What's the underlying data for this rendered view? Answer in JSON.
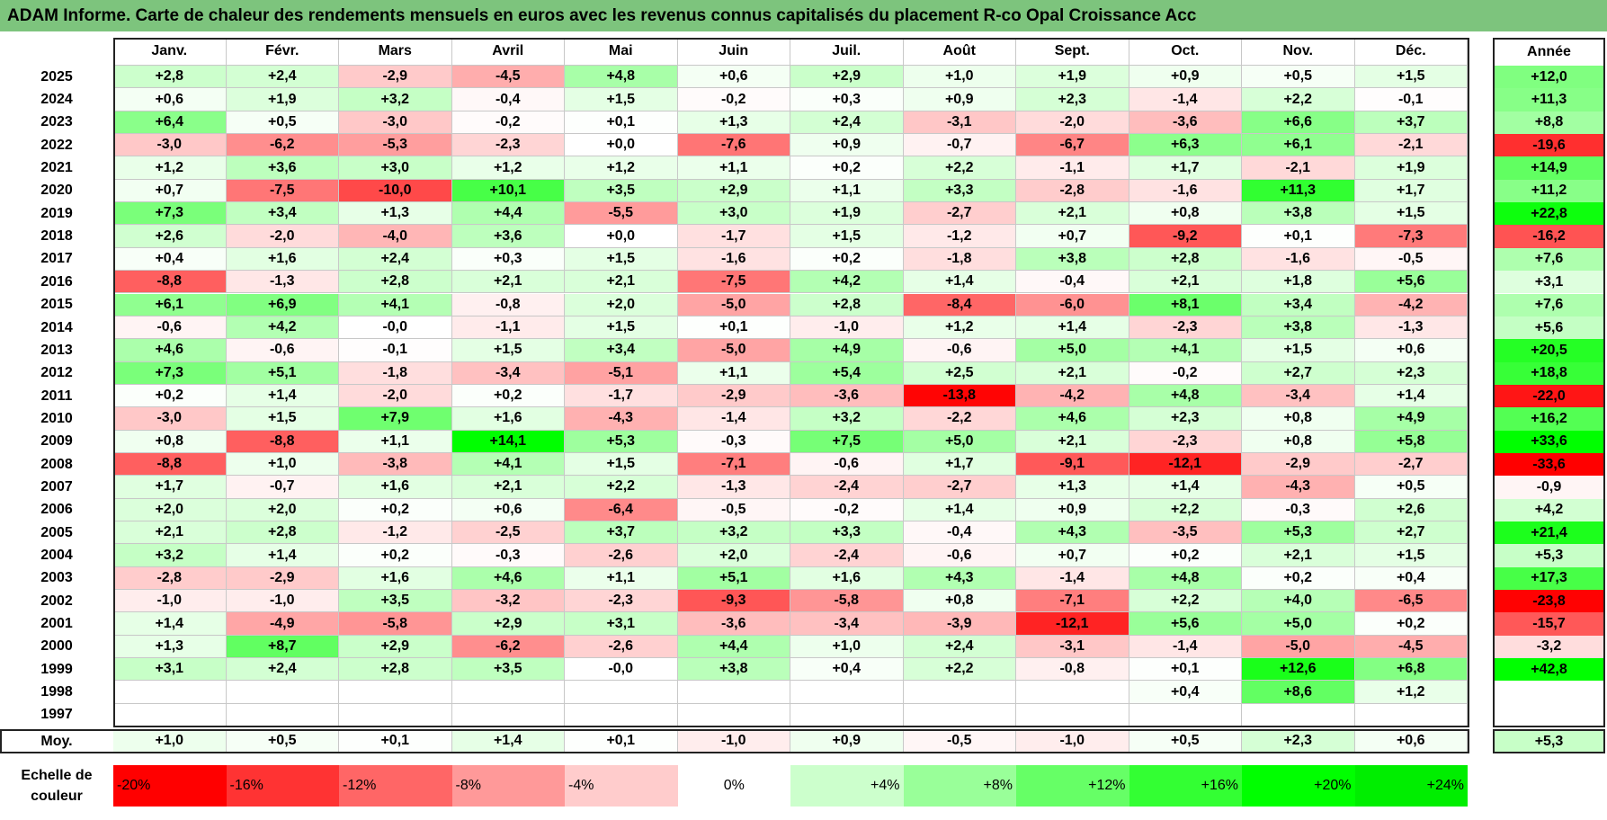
{
  "title": "ADAM Informe. Carte de chaleur des rendements mensuels en euros avec les revenus connus capitalisés du placement R-co Opal Croissance Acc",
  "chart_data": {
    "type": "heatmap",
    "title": "ADAM Informe. Carte de chaleur des rendements mensuels en euros avec les revenus connus capitalisés du placement R-co Opal Croissance Acc",
    "columns": [
      "Janv.",
      "Févr.",
      "Mars",
      "Avril",
      "Mai",
      "Juin",
      "Juil.",
      "Août",
      "Sept.",
      "Oct.",
      "Nov.",
      "Déc."
    ],
    "year_header": "Année",
    "rows": [
      {
        "year": "2025",
        "values": [
          "+2,8",
          "+2,4",
          "-2,9",
          "-4,5",
          "+4,8",
          "+0,6",
          "+2,9",
          "+1,0",
          "+1,9",
          "+0,9",
          "+0,5",
          "+1,5"
        ],
        "annual": "+12,0"
      },
      {
        "year": "2024",
        "values": [
          "+0,6",
          "+1,9",
          "+3,2",
          "-0,4",
          "+1,5",
          "-0,2",
          "+0,3",
          "+0,9",
          "+2,3",
          "-1,4",
          "+2,2",
          "-0,1"
        ],
        "annual": "+11,3"
      },
      {
        "year": "2023",
        "values": [
          "+6,4",
          "+0,5",
          "-3,0",
          "-0,2",
          "+0,1",
          "+1,3",
          "+2,4",
          "-3,1",
          "-2,0",
          "-3,6",
          "+6,6",
          "+3,7"
        ],
        "annual": "+8,8"
      },
      {
        "year": "2022",
        "values": [
          "-3,0",
          "-6,2",
          "-5,3",
          "-2,3",
          "+0,0",
          "-7,6",
          "+0,9",
          "-0,7",
          "-6,7",
          "+6,3",
          "+6,1",
          "-2,1"
        ],
        "annual": "-19,6"
      },
      {
        "year": "2021",
        "values": [
          "+1,2",
          "+3,6",
          "+3,0",
          "+1,2",
          "+1,2",
          "+1,1",
          "+0,2",
          "+2,2",
          "-1,1",
          "+1,7",
          "-2,1",
          "+1,9"
        ],
        "annual": "+14,9"
      },
      {
        "year": "2020",
        "values": [
          "+0,7",
          "-7,5",
          "-10,0",
          "+10,1",
          "+3,5",
          "+2,9",
          "+1,1",
          "+3,3",
          "-2,8",
          "-1,6",
          "+11,3",
          "+1,7"
        ],
        "annual": "+11,2"
      },
      {
        "year": "2019",
        "values": [
          "+7,3",
          "+3,4",
          "+1,3",
          "+4,4",
          "-5,5",
          "+3,0",
          "+1,9",
          "-2,7",
          "+2,1",
          "+0,8",
          "+3,8",
          "+1,5"
        ],
        "annual": "+22,8"
      },
      {
        "year": "2018",
        "values": [
          "+2,6",
          "-2,0",
          "-4,0",
          "+3,6",
          "+0,0",
          "-1,7",
          "+1,5",
          "-1,2",
          "+0,7",
          "-9,2",
          "+0,1",
          "-7,3"
        ],
        "annual": "-16,2"
      },
      {
        "year": "2017",
        "values": [
          "+0,4",
          "+1,6",
          "+2,4",
          "+0,3",
          "+1,5",
          "-1,6",
          "+0,2",
          "-1,8",
          "+3,8",
          "+2,8",
          "-1,6",
          "-0,5"
        ],
        "annual": "+7,6"
      },
      {
        "year": "2016",
        "values": [
          "-8,8",
          "-1,3",
          "+2,8",
          "+2,1",
          "+2,1",
          "-7,5",
          "+4,2",
          "+1,4",
          "-0,4",
          "+2,1",
          "+1,8",
          "+5,6"
        ],
        "annual": "+3,1"
      },
      {
        "year": "2015",
        "values": [
          "+6,1",
          "+6,9",
          "+4,1",
          "-0,8",
          "+2,0",
          "-5,0",
          "+2,8",
          "-8,4",
          "-6,0",
          "+8,1",
          "+3,4",
          "-4,2"
        ],
        "annual": "+7,6"
      },
      {
        "year": "2014",
        "values": [
          "-0,6",
          "+4,2",
          "-0,0",
          "-1,1",
          "+1,5",
          "+0,1",
          "-1,0",
          "+1,2",
          "+1,4",
          "-2,3",
          "+3,8",
          "-1,3"
        ],
        "annual": "+5,6"
      },
      {
        "year": "2013",
        "values": [
          "+4,6",
          "-0,6",
          "-0,1",
          "+1,5",
          "+3,4",
          "-5,0",
          "+4,9",
          "-0,6",
          "+5,0",
          "+4,1",
          "+1,5",
          "+0,6"
        ],
        "annual": "+20,5"
      },
      {
        "year": "2012",
        "values": [
          "+7,3",
          "+5,1",
          "-1,8",
          "-3,4",
          "-5,1",
          "+1,1",
          "+5,4",
          "+2,5",
          "+2,1",
          "-0,2",
          "+2,7",
          "+2,3"
        ],
        "annual": "+18,8"
      },
      {
        "year": "2011",
        "values": [
          "+0,2",
          "+1,4",
          "-2,0",
          "+0,2",
          "-1,7",
          "-2,9",
          "-3,6",
          "-13,8",
          "-4,2",
          "+4,8",
          "-3,4",
          "+1,4"
        ],
        "annual": "-22,0"
      },
      {
        "year": "2010",
        "values": [
          "-3,0",
          "+1,5",
          "+7,9",
          "+1,6",
          "-4,3",
          "-1,4",
          "+3,2",
          "-2,2",
          "+4,6",
          "+2,3",
          "+0,8",
          "+4,9"
        ],
        "annual": "+16,2"
      },
      {
        "year": "2009",
        "values": [
          "+0,8",
          "-8,8",
          "+1,1",
          "+14,1",
          "+5,3",
          "-0,3",
          "+7,5",
          "+5,0",
          "+2,1",
          "-2,3",
          "+0,8",
          "+5,8"
        ],
        "annual": "+33,6"
      },
      {
        "year": "2008",
        "values": [
          "-8,8",
          "+1,0",
          "-3,8",
          "+4,1",
          "+1,5",
          "-7,1",
          "-0,6",
          "+1,7",
          "-9,1",
          "-12,1",
          "-2,9",
          "-2,7"
        ],
        "annual": "-33,6"
      },
      {
        "year": "2007",
        "values": [
          "+1,7",
          "-0,7",
          "+1,6",
          "+2,1",
          "+2,2",
          "-1,3",
          "-2,4",
          "-2,7",
          "+1,3",
          "+1,4",
          "-4,3",
          "+0,5"
        ],
        "annual": "-0,9"
      },
      {
        "year": "2006",
        "values": [
          "+2,0",
          "+2,0",
          "+0,2",
          "+0,6",
          "-6,4",
          "-0,5",
          "-0,2",
          "+1,4",
          "+0,9",
          "+2,2",
          "-0,3",
          "+2,6"
        ],
        "annual": "+4,2"
      },
      {
        "year": "2005",
        "values": [
          "+2,1",
          "+2,8",
          "-1,2",
          "-2,5",
          "+3,7",
          "+3,2",
          "+3,3",
          "-0,4",
          "+4,3",
          "-3,5",
          "+5,3",
          "+2,7"
        ],
        "annual": "+21,4"
      },
      {
        "year": "2004",
        "values": [
          "+3,2",
          "+1,4",
          "+0,2",
          "-0,3",
          "-2,6",
          "+2,0",
          "-2,4",
          "-0,6",
          "+0,7",
          "+0,2",
          "+2,1",
          "+1,5"
        ],
        "annual": "+5,3"
      },
      {
        "year": "2003",
        "values": [
          "-2,8",
          "-2,9",
          "+1,6",
          "+4,6",
          "+1,1",
          "+5,1",
          "+1,6",
          "+4,3",
          "-1,4",
          "+4,8",
          "+0,2",
          "+0,4"
        ],
        "annual": "+17,3"
      },
      {
        "year": "2002",
        "values": [
          "-1,0",
          "-1,0",
          "+3,5",
          "-3,2",
          "-2,3",
          "-9,3",
          "-5,8",
          "+0,8",
          "-7,1",
          "+2,2",
          "+4,0",
          "-6,5"
        ],
        "annual": "-23,8"
      },
      {
        "year": "2001",
        "values": [
          "+1,4",
          "-4,9",
          "-5,8",
          "+2,9",
          "+3,1",
          "-3,6",
          "-3,4",
          "-3,9",
          "-12,1",
          "+5,6",
          "+5,0",
          "+0,2"
        ],
        "annual": "-15,7"
      },
      {
        "year": "2000",
        "values": [
          "+1,3",
          "+8,7",
          "+2,9",
          "-6,2",
          "-2,6",
          "+4,4",
          "+1,0",
          "+2,4",
          "-3,1",
          "-1,4",
          "-5,0",
          "-4,5"
        ],
        "annual": "-3,2"
      },
      {
        "year": "1999",
        "values": [
          "+3,1",
          "+2,4",
          "+2,8",
          "+3,5",
          "-0,0",
          "+3,8",
          "+0,4",
          "+2,2",
          "-0,8",
          "+0,1",
          "+12,6",
          "+6,8"
        ],
        "annual": "+42,8"
      },
      {
        "year": "1998",
        "values": [
          "",
          "",
          "",
          "",
          "",
          "",
          "",
          "",
          "",
          "+0,4",
          "+8,6",
          "+1,2"
        ],
        "annual": ""
      },
      {
        "year": "1997",
        "values": [
          "",
          "",
          "",
          "",
          "",
          "",
          "",
          "",
          "",
          "",
          "",
          ""
        ],
        "annual": ""
      }
    ],
    "average": {
      "label": "Moy.",
      "values": [
        "+1,0",
        "+0,5",
        "+0,1",
        "+1,4",
        "+0,1",
        "-1,0",
        "+0,9",
        "-0,5",
        "-1,0",
        "+0,5",
        "+2,3",
        "+0,6"
      ],
      "annual": "+5,3"
    },
    "legend": {
      "label_line1": "Echelle de",
      "label_line2": "couleur",
      "items": [
        {
          "label": "-20%",
          "color": "#ff0000"
        },
        {
          "label": "-16%",
          "color": "#ff3333"
        },
        {
          "label": "-12%",
          "color": "#ff6666"
        },
        {
          "label": "-8%",
          "color": "#ff9999"
        },
        {
          "label": "-4%",
          "color": "#ffcccc"
        },
        {
          "label": "0%",
          "color": "#ffffff"
        },
        {
          "label": "+4%",
          "color": "#ccffcc"
        },
        {
          "label": "+8%",
          "color": "#99ff99"
        },
        {
          "label": "+12%",
          "color": "#66ff66"
        },
        {
          "label": "+16%",
          "color": "#33ff33"
        },
        {
          "label": "+20%",
          "color": "#00ff00"
        },
        {
          "label": "+24%",
          "color": "#00ee00"
        }
      ]
    },
    "colors": {
      "title_bar": "#7dc47d",
      "negative_max": "#ff0000",
      "positive_max": "#00ff00",
      "neutral": "#ffffff"
    }
  }
}
